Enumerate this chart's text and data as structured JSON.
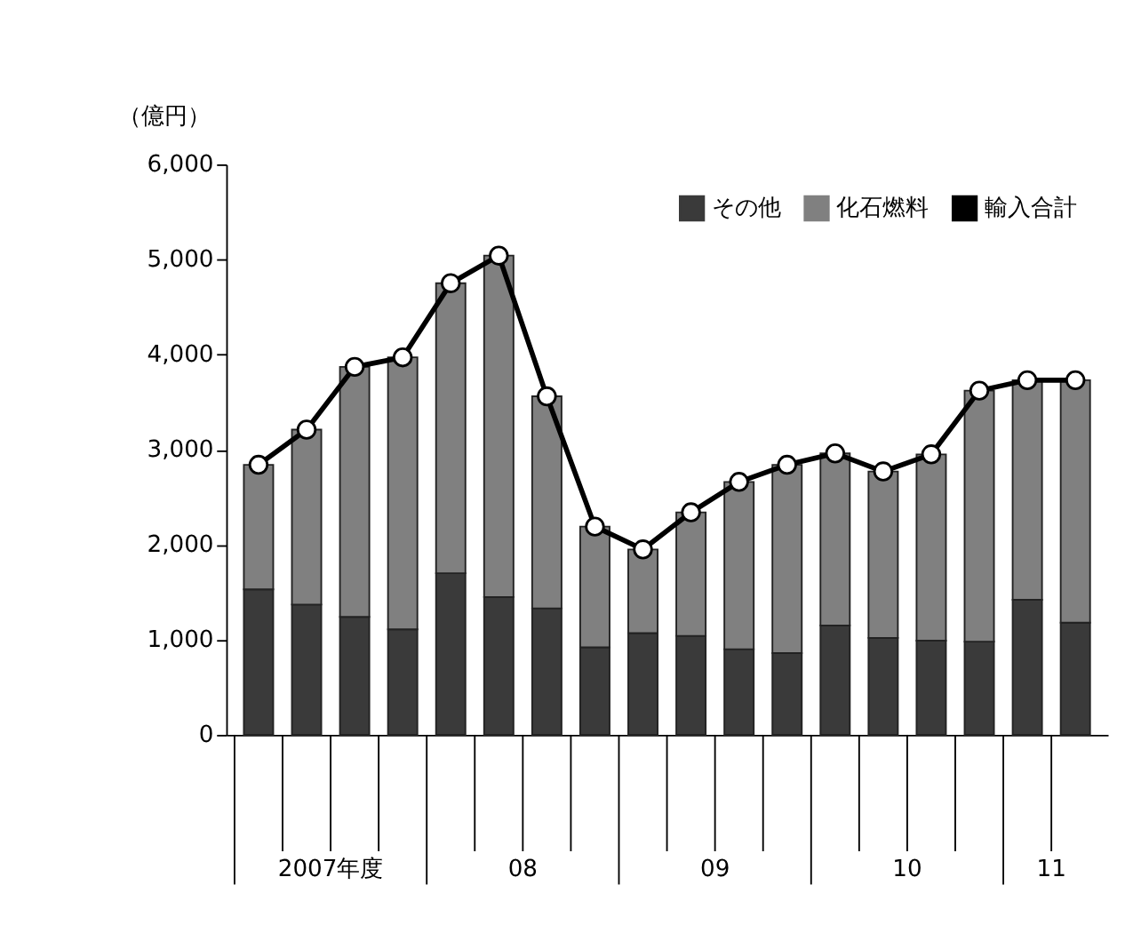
{
  "chart_data": {
    "type": "bar",
    "stacked": true,
    "ylabel": "（億円）",
    "categories": [
      null,
      null,
      null,
      null,
      null,
      null,
      null,
      null,
      null,
      null,
      null,
      null,
      null,
      null,
      null,
      null,
      null,
      null
    ],
    "series": [
      {
        "name": "その他",
        "color": "#3a3a3a",
        "values": [
          1530,
          1370,
          1240,
          1110,
          1700,
          1450,
          1330,
          920,
          1070,
          1040,
          900,
          860,
          1150,
          1020,
          990,
          980,
          1420,
          1180
        ]
      },
      {
        "name": "化石燃料",
        "color": "#808080",
        "values": [
          1310,
          1840,
          2630,
          2860,
          3050,
          3590,
          2230,
          1270,
          880,
          1300,
          1760,
          1980,
          1810,
          1750,
          1960,
          2640,
          2310,
          2550
        ]
      },
      {
        "name": "輸入合計",
        "type": "line",
        "color": "#000000",
        "marker": "circle",
        "values": [
          2840,
          3210,
          3870,
          3970,
          4750,
          5040,
          3560,
          2190,
          1950,
          2340,
          2660,
          2840,
          2960,
          2770,
          2950,
          3620,
          3730,
          3730
        ]
      }
    ],
    "ylim": [
      0,
      6000
    ],
    "yticks": [
      0,
      {
        "value": 1000,
        "label": "1,000"
      },
      {
        "value": 2000,
        "label": "2,000"
      },
      {
        "value": 3000,
        "label": "3,000"
      },
      {
        "value": 4000,
        "label": "4,000"
      },
      {
        "value": 5000,
        "label": "5,000"
      },
      {
        "value": 6000,
        "label": "6,000"
      }
    ],
    "tick_labels": "y",
    "grid": false,
    "legend": "top right",
    "annotations": [
      "2007年度",
      "08",
      "09",
      "10",
      "11"
    ]
  }
}
